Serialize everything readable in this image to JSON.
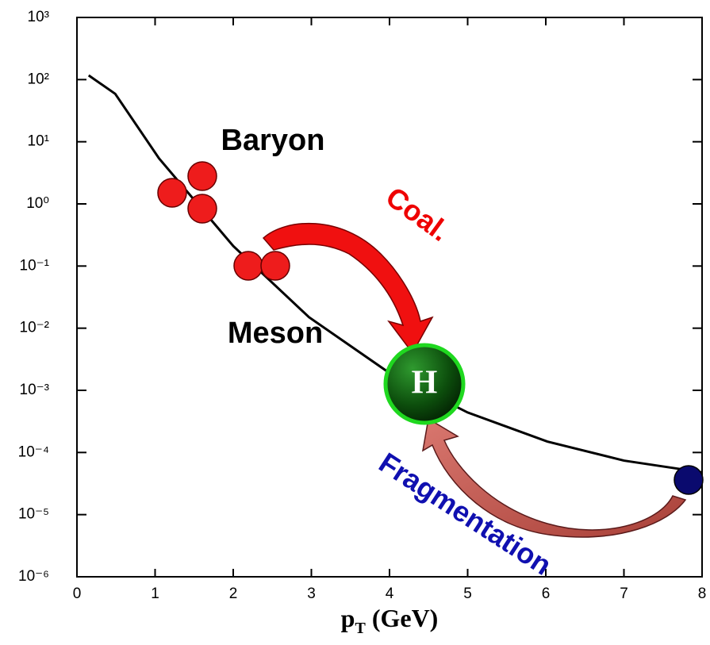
{
  "chart_data": {
    "type": "line",
    "x": [
      0.15,
      0.49,
      1.05,
      2.0,
      2.97,
      4.0,
      5.0,
      6.02,
      7.0,
      8.0
    ],
    "series": [
      {
        "color": "#000000",
        "values": [
          117,
          59,
          5.4,
          0.21,
          0.015,
          0.0019,
          0.00044,
          0.00015,
          7.4e-05,
          4.8e-05
        ]
      }
    ],
    "xlim": [
      0,
      8
    ],
    "xticks": [
      0,
      1,
      2,
      3,
      4,
      5,
      6,
      7,
      8
    ],
    "ylim": [
      1e-06,
      1000
    ],
    "log_y": true,
    "yticks": [
      {
        "value": 1e-06,
        "label": "10⁻⁶"
      },
      {
        "value": 1e-05,
        "label": "10⁻⁵"
      },
      {
        "value": 0.0001,
        "label": "10⁻⁴"
      },
      {
        "value": 0.001,
        "label": "10⁻³"
      },
      {
        "value": 0.01,
        "label": "10⁻²"
      },
      {
        "value": 0.1,
        "label": "10⁻¹"
      },
      {
        "value": 1,
        "label": "10⁰"
      },
      {
        "value": 10,
        "label": "10¹"
      },
      {
        "value": 100,
        "label": "10²"
      },
      {
        "value": 1000,
        "label": "10³"
      }
    ],
    "x_label": {
      "main": "p",
      "sub": "T",
      "rest": " (GeV)"
    },
    "annotations": {
      "baryon": "Baryon",
      "meson": "Meson",
      "coal": "Coal.",
      "fragmentation": "Fragmentation",
      "hadron": "H"
    }
  }
}
